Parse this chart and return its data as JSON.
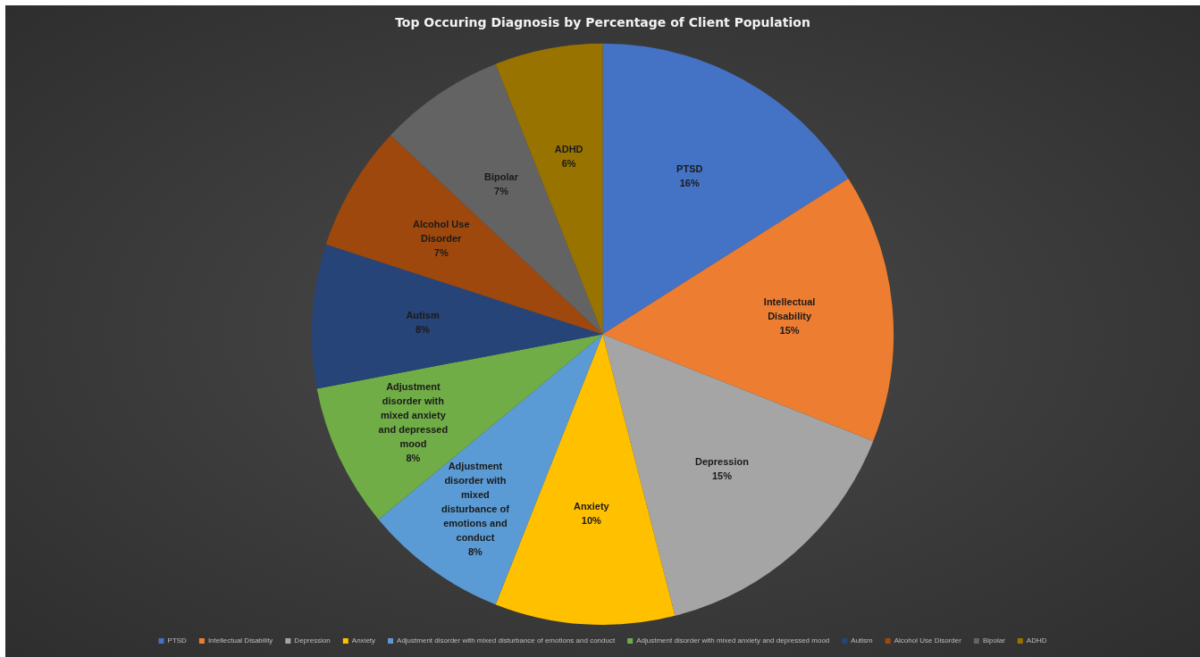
{
  "chart_data": {
    "type": "pie",
    "title": "Top Occuring Diagnosis by Percentage of Client Population",
    "categories": [
      "PTSD",
      "Intellectual Disability",
      "Depression",
      "Anxiety",
      "Adjustment disorder with mixed disturbance of emotions and conduct",
      "Adjustment disorder with mixed anxiety and depressed mood",
      "Autism",
      "Alcohol Use Disorder",
      "Bipolar",
      "ADHD"
    ],
    "values": [
      16,
      15,
      15,
      10,
      8,
      8,
      8,
      7,
      7,
      6
    ],
    "value_labels": [
      "16%",
      "15%",
      "15%",
      "10%",
      "8%",
      "8%",
      "8%",
      "7%",
      "7%",
      "6%"
    ],
    "colors": [
      "#4472c4",
      "#ed7d31",
      "#a5a5a5",
      "#ffc000",
      "#5b9bd5",
      "#70ad47",
      "#264478",
      "#9e480e",
      "#636363",
      "#997300"
    ],
    "legend": "bottom"
  }
}
